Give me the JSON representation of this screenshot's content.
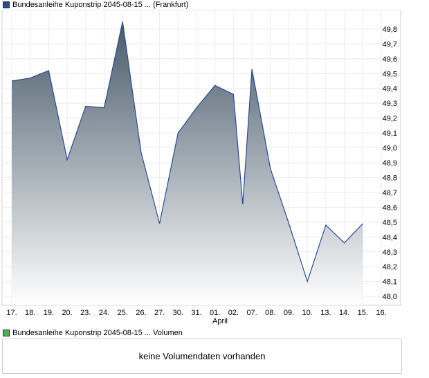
{
  "price_legend": {
    "label": "Bundesanleihe Kuponstrip 2045-08-15  ...  (Frankfurt)",
    "color": "#2b4a8f"
  },
  "volume_legend": {
    "label": "Bundesanleihe Kuponstrip 2045-08-15  ...  Volumen",
    "color": "#4caf50"
  },
  "volume_panel": {
    "message": "keine Volumendaten vorhanden"
  },
  "x_month_label": "April",
  "chart_data": {
    "type": "area",
    "title": "",
    "xlabel": "",
    "ylabel": "",
    "categories": [
      "17.",
      "18.",
      "19.",
      "20.",
      "23.",
      "24.",
      "25.",
      "26.",
      "27.",
      "30.",
      "31.",
      "01.",
      "02.",
      "07.",
      "08.",
      "09.",
      "10.",
      "13.",
      "14.",
      "15.",
      "16."
    ],
    "points": [
      {
        "x": 0.0,
        "y": 49.45
      },
      {
        "x": 1.0,
        "y": 49.47
      },
      {
        "x": 2.0,
        "y": 49.52
      },
      {
        "x": 3.0,
        "y": 48.92
      },
      {
        "x": 4.0,
        "y": 49.28
      },
      {
        "x": 5.0,
        "y": 49.27
      },
      {
        "x": 6.0,
        "y": 49.85
      },
      {
        "x": 7.0,
        "y": 48.97
      },
      {
        "x": 8.0,
        "y": 48.49
      },
      {
        "x": 9.0,
        "y": 49.1
      },
      {
        "x": 10.0,
        "y": 49.27
      },
      {
        "x": 11.0,
        "y": 49.42
      },
      {
        "x": 12.0,
        "y": 49.36
      },
      {
        "x": 12.5,
        "y": 48.62
      },
      {
        "x": 13.0,
        "y": 49.53
      },
      {
        "x": 14.0,
        "y": 48.86
      },
      {
        "x": 15.0,
        "y": 48.49
      },
      {
        "x": 16.0,
        "y": 48.1
      },
      {
        "x": 17.0,
        "y": 48.48
      },
      {
        "x": 18.0,
        "y": 48.36
      },
      {
        "x": 19.0,
        "y": 48.49
      }
    ],
    "y_ticks": [
      "48,0",
      "48,1",
      "48,2",
      "48,3",
      "48,4",
      "48,5",
      "48,6",
      "48,7",
      "48,8",
      "48,9",
      "49,0",
      "49,1",
      "49,2",
      "49,3",
      "49,4",
      "49,5",
      "49,6",
      "49,7",
      "49,8"
    ],
    "ylim": [
      47.94,
      49.93
    ],
    "grid": true,
    "line_color": "#2b4a8f",
    "fill_top_color": "#485a6a",
    "fill_bottom_color": "#ffffff"
  }
}
